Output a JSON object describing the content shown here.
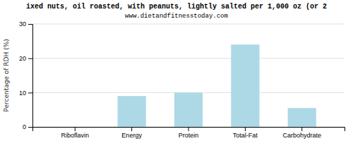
{
  "chart_data": {
    "type": "bar",
    "title": "ixed nuts, oil roasted, with peanuts, lightly salted per 1,000 oz (or 2",
    "subtitle": "www.dietandfitnesstoday.com",
    "categories": [
      "Riboflavin",
      "Energy",
      "Protein",
      "Total-Fat",
      "Carbohydrate"
    ],
    "values": [
      0,
      9,
      10,
      24,
      5.5
    ],
    "color": "#add8e6",
    "ylabel": "Percentage of RDH (%)",
    "ylim": [
      0,
      30
    ],
    "yticks": [
      0,
      10,
      20,
      30
    ],
    "grid": true
  }
}
